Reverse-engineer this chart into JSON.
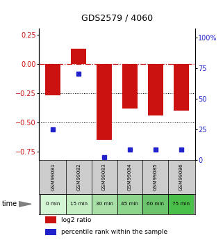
{
  "title": "GDS2579 / 4060",
  "samples": [
    "GSM99081",
    "GSM99082",
    "GSM99083",
    "GSM99084",
    "GSM99085",
    "GSM99086"
  ],
  "time_labels": [
    "0 min",
    "15 min",
    "30 min",
    "45 min",
    "60 min",
    "75 min"
  ],
  "time_colors": [
    "#d4f5d4",
    "#c2eec2",
    "#a8e0a8",
    "#8dd48d",
    "#6cc46c",
    "#4abf4a"
  ],
  "log2_ratio": [
    -0.27,
    0.13,
    -0.65,
    -0.38,
    -0.44,
    -0.4
  ],
  "percentile_rank": [
    25,
    70,
    2,
    8,
    8,
    8
  ],
  "bar_color": "#cc1111",
  "dot_color": "#2222cc",
  "left_ylim": [
    -0.82,
    0.3
  ],
  "right_ylim": [
    0,
    107
  ],
  "left_yticks": [
    0.25,
    0,
    -0.25,
    -0.5,
    -0.75
  ],
  "right_yticks": [
    100,
    75,
    50,
    25,
    0
  ],
  "sample_bg": "#cccccc",
  "bg_color": "#ffffff"
}
